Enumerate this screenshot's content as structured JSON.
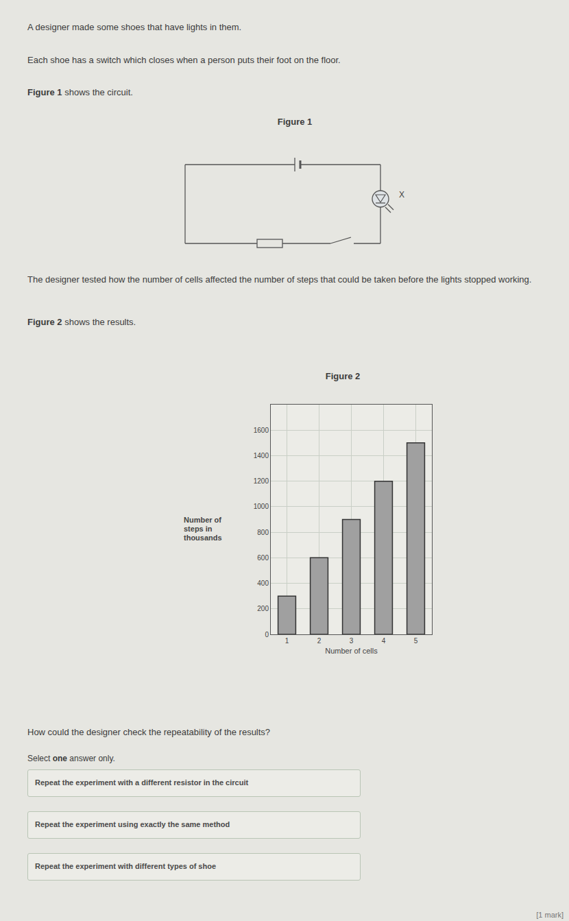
{
  "intro": [
    "A designer made some shoes that have lights in them.",
    "Each shoe has a switch which closes when a person puts their foot on the floor."
  ],
  "figure1_intro": {
    "bold": "Figure 1",
    "rest": " shows the circuit."
  },
  "figure1": {
    "title": "Figure 1",
    "component_label": "X"
  },
  "method": "The designer tested how the number of cells affected the number of steps that could be taken before the lights stopped working.",
  "figure2_intro": {
    "bold": "Figure 2",
    "rest": " shows the results."
  },
  "chart_data": {
    "type": "bar",
    "title": "Figure 2",
    "categories": [
      "1",
      "2",
      "3",
      "4",
      "5"
    ],
    "values": [
      300,
      600,
      900,
      1200,
      1500
    ],
    "color": "#a0a0a0",
    "x_label": "Number of cells",
    "y_label": "Number of steps in thousands",
    "ylim": [
      0,
      1800
    ],
    "yticks": [
      0,
      200,
      400,
      600,
      800,
      1000,
      1200,
      1400,
      1600
    ],
    "grid": true
  },
  "question": "How could the designer check the repeatability of the results?",
  "instruction": {
    "before": "Select ",
    "bold": "one",
    "after": " answer only."
  },
  "options": [
    "Repeat the experiment with a different resistor in the circuit",
    "Repeat the experiment using exactly the same method",
    "Repeat the experiment with different types of shoe"
  ],
  "marks": "[1 mark]"
}
